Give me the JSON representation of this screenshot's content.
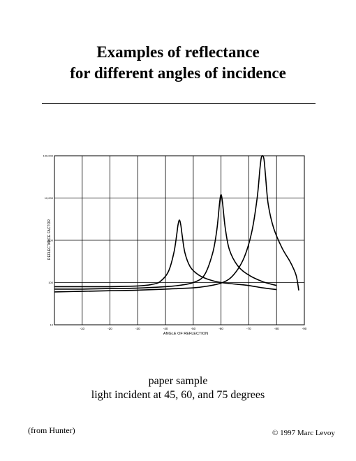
{
  "page": {
    "title_line1": "Examples of reflectance",
    "title_line2": "for different angles of incidence",
    "caption_line1": "paper sample",
    "caption_line2": "light incident at 45, 60, and 75 degrees",
    "source": "(from Hunter)",
    "copyright": "© 1997 Marc Levoy"
  },
  "chart_data": {
    "type": "line",
    "xlabel": "ANGLE OF REFLECTION",
    "ylabel": "REFLECTANCE FACTOR",
    "xlim": [
      0,
      -90
    ],
    "x_ticks": [
      -10,
      -20,
      -30,
      -40,
      -50,
      -60,
      -70,
      -80,
      -90
    ],
    "y_scale": "log",
    "ylim": [
      10,
      100000
    ],
    "y_ticks": [
      10,
      100,
      1000,
      10000,
      100000
    ],
    "y_tick_labels": [
      "10",
      "100",
      "1000",
      "10,000",
      "100,000"
    ],
    "grid": true,
    "series": [
      {
        "x": [
          0,
          -10,
          -20,
          -30,
          -35,
          -38,
          -41,
          -43,
          -44,
          -44.5,
          -45,
          -45.5,
          -46,
          -47,
          -49,
          -52,
          -56,
          -60,
          -65,
          -70,
          -75,
          -80
        ],
        "values": [
          80,
          80,
          80,
          83,
          90,
          105,
          180,
          500,
          1300,
          2300,
          3000,
          2300,
          1300,
          500,
          230,
          150,
          115,
          100,
          92,
          85,
          75,
          68
        ]
      },
      {
        "x": [
          0,
          -10,
          -20,
          -30,
          -40,
          -45,
          -50,
          -54,
          -57,
          -58.5,
          -59.5,
          -60,
          -60.5,
          -61.5,
          -63,
          -66,
          -70,
          -75,
          -80
        ],
        "values": [
          70,
          70,
          72,
          74,
          80,
          86,
          100,
          150,
          500,
          1800,
          8000,
          12000,
          8000,
          2000,
          600,
          250,
          150,
          105,
          85
        ]
      },
      {
        "x": [
          0,
          -10,
          -20,
          -30,
          -40,
          -50,
          -55,
          -60,
          -64,
          -68,
          -71,
          -73,
          -74,
          -74.5,
          -75,
          -75.5,
          -76,
          -77,
          -79,
          -82,
          -85,
          -87,
          -88
        ],
        "values": [
          60,
          62,
          64,
          66,
          70,
          75,
          82,
          97,
          140,
          350,
          1500,
          10000,
          50000,
          90000,
          100000,
          80000,
          35000,
          7000,
          1900,
          650,
          300,
          150,
          65
        ]
      }
    ]
  }
}
